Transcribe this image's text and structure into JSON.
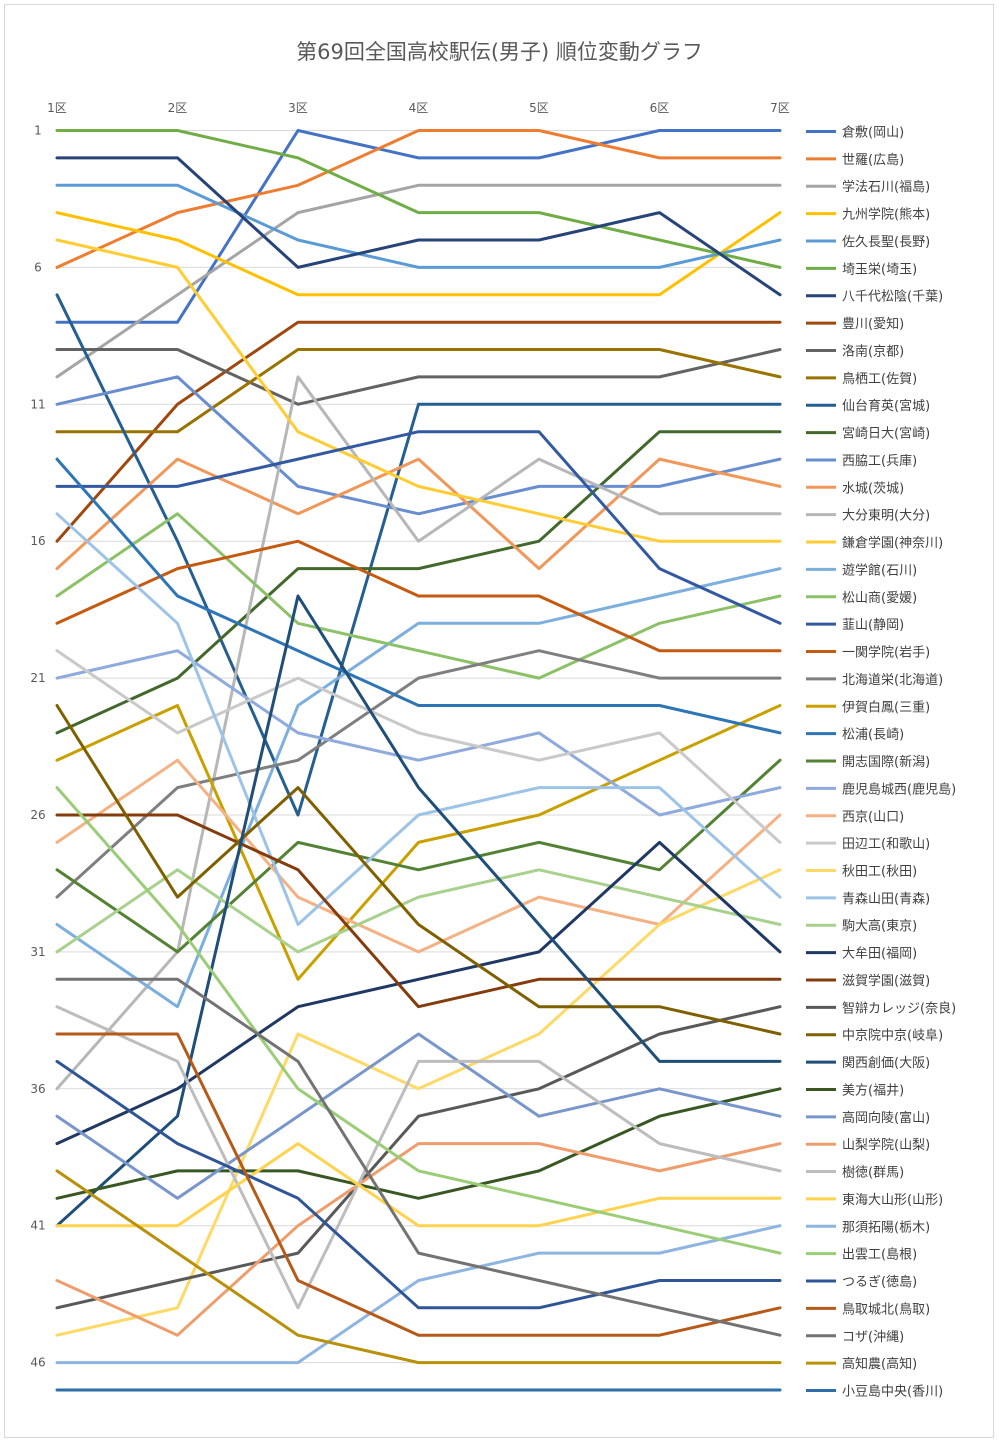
{
  "chart_data": {
    "type": "line",
    "title": "第69回全国高校駅伝(男子) 順位変動グラフ",
    "categories": [
      "1区",
      "2区",
      "3区",
      "4区",
      "5区",
      "6区",
      "7区"
    ],
    "y_ticks": [
      1,
      6,
      11,
      16,
      21,
      26,
      31,
      36,
      41,
      46
    ],
    "ylim": [
      1,
      47
    ],
    "y_reversed": true,
    "grid": true,
    "legend_position": "right",
    "series": [
      {
        "name": "倉敷(岡山)",
        "color": "#4472C4",
        "values": [
          8,
          8,
          1,
          2,
          2,
          1,
          1
        ]
      },
      {
        "name": "世羅(広島)",
        "color": "#ED7D31",
        "values": [
          6,
          4,
          3,
          1,
          1,
          2,
          2
        ]
      },
      {
        "name": "学法石川(福島)",
        "color": "#A5A5A5",
        "values": [
          10,
          7,
          4,
          3,
          3,
          3,
          3
        ]
      },
      {
        "name": "九州学院(熊本)",
        "color": "#FFC000",
        "values": [
          4,
          5,
          7,
          7,
          7,
          7,
          4
        ]
      },
      {
        "name": "佐久長聖(長野)",
        "color": "#5B9BD5",
        "values": [
          3,
          3,
          5,
          6,
          6,
          6,
          5
        ]
      },
      {
        "name": "埼玉栄(埼玉)",
        "color": "#70AD47",
        "values": [
          1,
          1,
          2,
          4,
          4,
          5,
          6
        ]
      },
      {
        "name": "八千代松陰(千葉)",
        "color": "#264478",
        "values": [
          2,
          2,
          6,
          5,
          5,
          4,
          7
        ]
      },
      {
        "name": "豊川(愛知)",
        "color": "#9E480E",
        "values": [
          16,
          11,
          8,
          8,
          8,
          8,
          8
        ]
      },
      {
        "name": "洛南(京都)",
        "color": "#636363",
        "values": [
          9,
          9,
          11,
          10,
          10,
          10,
          9
        ]
      },
      {
        "name": "鳥栖工(佐賀)",
        "color": "#997300",
        "values": [
          12,
          12,
          9,
          9,
          9,
          9,
          10
        ]
      },
      {
        "name": "仙台育英(宮城)",
        "color": "#255E91",
        "values": [
          7,
          16,
          26,
          11,
          11,
          11,
          11
        ]
      },
      {
        "name": "宮崎日大(宮崎)",
        "color": "#43682B",
        "values": [
          23,
          21,
          17,
          17,
          16,
          12,
          12
        ]
      },
      {
        "name": "西脇工(兵庫)",
        "color": "#698ED0",
        "values": [
          11,
          10,
          14,
          15,
          14,
          14,
          13
        ]
      },
      {
        "name": "水城(茨城)",
        "color": "#F1975A",
        "values": [
          17,
          13,
          15,
          13,
          17,
          13,
          14
        ]
      },
      {
        "name": "大分東明(大分)",
        "color": "#B7B7B7",
        "values": [
          36,
          31,
          10,
          16,
          13,
          15,
          15
        ]
      },
      {
        "name": "鎌倉学園(神奈川)",
        "color": "#FFCD33",
        "values": [
          5,
          6,
          12,
          14,
          15,
          16,
          16
        ]
      },
      {
        "name": "遊学館(石川)",
        "color": "#7CAFDD",
        "values": [
          30,
          33,
          22,
          19,
          19,
          18,
          17
        ]
      },
      {
        "name": "松山商(愛媛)",
        "color": "#8CC168",
        "values": [
          18,
          15,
          19,
          20,
          21,
          19,
          18
        ]
      },
      {
        "name": "韮山(静岡)",
        "color": "#335AA1",
        "values": [
          14,
          14,
          13,
          12,
          12,
          17,
          19
        ]
      },
      {
        "name": "一関学院(岩手)",
        "color": "#C55A11",
        "values": [
          19,
          17,
          16,
          18,
          18,
          20,
          20
        ]
      },
      {
        "name": "北海道栄(北海道)",
        "color": "#7F7F7F",
        "values": [
          29,
          25,
          24,
          21,
          20,
          21,
          21
        ]
      },
      {
        "name": "伊賀白鳳(三重)",
        "color": "#C9A000",
        "values": [
          24,
          22,
          32,
          27,
          26,
          24,
          22
        ]
      },
      {
        "name": "松浦(長崎)",
        "color": "#2E75B6",
        "values": [
          13,
          18,
          20,
          22,
          22,
          22,
          23
        ]
      },
      {
        "name": "開志国際(新潟)",
        "color": "#548235",
        "values": [
          28,
          31,
          27,
          28,
          27,
          28,
          24
        ]
      },
      {
        "name": "鹿児島城西(鹿児島)",
        "color": "#8FAADC",
        "values": [
          21,
          20,
          23,
          24,
          23,
          26,
          25
        ]
      },
      {
        "name": "西京(山口)",
        "color": "#F4B183",
        "values": [
          27,
          24,
          29,
          31,
          29,
          30,
          26
        ]
      },
      {
        "name": "田辺工(和歌山)",
        "color": "#C9C9C9",
        "values": [
          20,
          23,
          21,
          23,
          24,
          23,
          27
        ]
      },
      {
        "name": "秋田工(秋田)",
        "color": "#FFD966",
        "values": [
          45,
          44,
          34,
          36,
          34,
          30,
          28
        ]
      },
      {
        "name": "青森山田(青森)",
        "color": "#9DC3E6",
        "values": [
          15,
          19,
          30,
          26,
          25,
          25,
          29
        ]
      },
      {
        "name": "駒大高(東京)",
        "color": "#A9D18E",
        "values": [
          31,
          28,
          31,
          29,
          28,
          29,
          30
        ]
      },
      {
        "name": "大牟田(福岡)",
        "color": "#203864",
        "values": [
          38,
          36,
          33,
          32,
          31,
          27,
          31
        ]
      },
      {
        "name": "滋賀学園(滋賀)",
        "color": "#843C0C",
        "values": [
          26,
          26,
          28,
          33,
          32,
          32,
          32
        ]
      },
      {
        "name": "智辯カレッジ(奈良)",
        "color": "#595959",
        "values": [
          44,
          43,
          42,
          37,
          36,
          34,
          33
        ]
      },
      {
        "name": "中京院中京(岐阜)",
        "color": "#7F6000",
        "values": [
          22,
          29,
          25,
          30,
          33,
          33,
          34
        ]
      },
      {
        "name": "関西創価(大阪)",
        "color": "#1F4E79",
        "values": [
          41,
          37,
          18,
          25,
          30,
          35,
          35
        ]
      },
      {
        "name": "美方(福井)",
        "color": "#385723",
        "values": [
          40,
          39,
          39,
          40,
          39,
          37,
          36
        ]
      },
      {
        "name": "高岡向陵(富山)",
        "color": "#7896CC",
        "values": [
          37,
          40,
          37,
          34,
          37,
          36,
          37
        ]
      },
      {
        "name": "山梨学院(山梨)",
        "color": "#EE9E6C",
        "values": [
          43,
          45,
          41,
          38,
          38,
          39,
          38
        ]
      },
      {
        "name": "樹徳(群馬)",
        "color": "#BDBDBD",
        "values": [
          33,
          35,
          44,
          35,
          35,
          38,
          39
        ]
      },
      {
        "name": "東海大山形(山形)",
        "color": "#FFD34D",
        "values": [
          41,
          41,
          38,
          41,
          41,
          40,
          40
        ]
      },
      {
        "name": "那須拓陽(栃木)",
        "color": "#8EB4E0",
        "values": [
          46,
          46,
          46,
          43,
          42,
          42,
          41
        ]
      },
      {
        "name": "出雲工(島根)",
        "color": "#9ACD76",
        "values": [
          25,
          30,
          36,
          39,
          40,
          41,
          42
        ]
      },
      {
        "name": "つるぎ(徳島)",
        "color": "#2F5597",
        "values": [
          35,
          38,
          40,
          44,
          44,
          43,
          43
        ]
      },
      {
        "name": "鳥取城北(鳥取)",
        "color": "#B55A18",
        "values": [
          34,
          34,
          43,
          45,
          45,
          45,
          44
        ]
      },
      {
        "name": "コザ(沖縄)",
        "color": "#737373",
        "values": [
          32,
          32,
          35,
          42,
          43,
          44,
          45
        ]
      },
      {
        "name": "高知農(高知)",
        "color": "#B8900A",
        "values": [
          39,
          42,
          45,
          46,
          46,
          46,
          46
        ]
      },
      {
        "name": "小豆島中央(香川)",
        "color": "#2E6FAA",
        "values": [
          47,
          47,
          47,
          47,
          47,
          47,
          47
        ]
      }
    ]
  }
}
